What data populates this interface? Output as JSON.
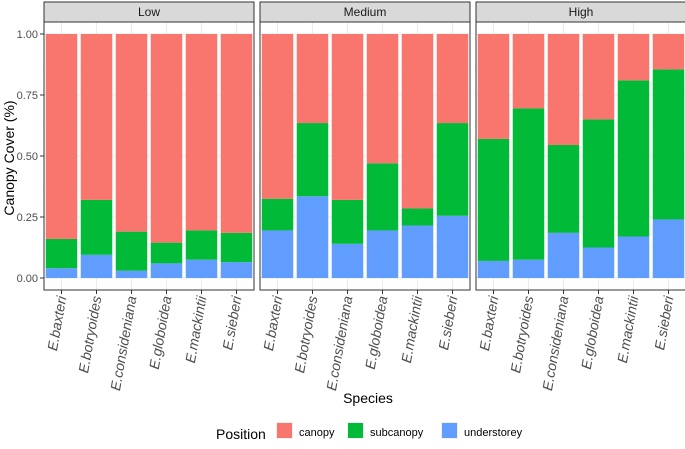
{
  "chart_data": {
    "type": "bar",
    "stacked": true,
    "facet_by": "Low / Medium / High",
    "xlabel": "Species",
    "ylabel": "Canopy Cover (%)",
    "ylim": [
      0,
      1
    ],
    "yticks": [
      "0.00",
      "0.25",
      "0.50",
      "0.75",
      "1.00"
    ],
    "yticks_values": [
      0,
      0.25,
      0.5,
      0.75,
      1.0
    ],
    "categories": [
      "E.baxteri",
      "E.botryoides",
      "E.consideniana",
      "E.globoidea",
      "E.mackintii",
      "E.sieberi"
    ],
    "legend": {
      "title": "Position",
      "position": "bottom",
      "entries": [
        {
          "name": "canopy",
          "color": "#F8766D"
        },
        {
          "name": "subcanopy",
          "color": "#00BA38"
        },
        {
          "name": "understorey",
          "color": "#619CFF"
        }
      ]
    },
    "panels": [
      {
        "label": "Low",
        "series": [
          {
            "name": "understorey",
            "values": [
              0.04,
              0.095,
              0.03,
              0.06,
              0.075,
              0.065
            ]
          },
          {
            "name": "subcanopy",
            "values": [
              0.12,
              0.225,
              0.16,
              0.085,
              0.12,
              0.12
            ]
          },
          {
            "name": "canopy",
            "values": [
              0.84,
              0.68,
              0.81,
              0.855,
              0.805,
              0.815
            ]
          }
        ]
      },
      {
        "label": "Medium",
        "series": [
          {
            "name": "understorey",
            "values": [
              0.195,
              0.335,
              0.14,
              0.195,
              0.215,
              0.255
            ]
          },
          {
            "name": "subcanopy",
            "values": [
              0.13,
              0.3,
              0.18,
              0.275,
              0.07,
              0.38
            ]
          },
          {
            "name": "canopy",
            "values": [
              0.675,
              0.365,
              0.68,
              0.53,
              0.715,
              0.365
            ]
          }
        ]
      },
      {
        "label": "High",
        "series": [
          {
            "name": "understorey",
            "values": [
              0.07,
              0.075,
              0.185,
              0.125,
              0.17,
              0.24
            ]
          },
          {
            "name": "subcanopy",
            "values": [
              0.5,
              0.62,
              0.36,
              0.525,
              0.64,
              0.615
            ]
          },
          {
            "name": "canopy",
            "values": [
              0.43,
              0.305,
              0.455,
              0.35,
              0.19,
              0.145
            ]
          }
        ]
      }
    ]
  }
}
